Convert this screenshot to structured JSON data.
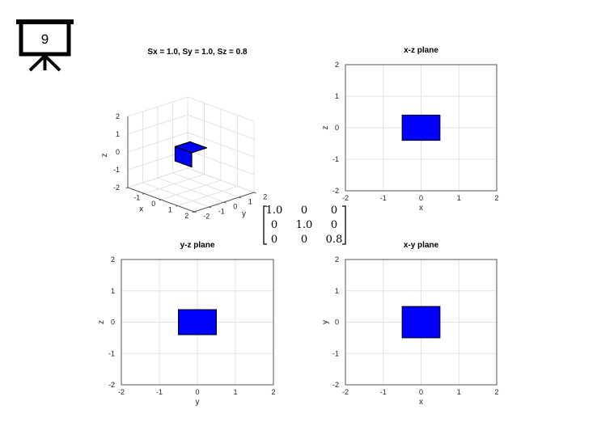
{
  "slide": {
    "number": "9"
  },
  "matrix": {
    "rows": [
      [
        "1.0",
        "0",
        "0"
      ],
      [
        "0",
        "1.0",
        "0"
      ],
      [
        "0",
        "0",
        "0.8"
      ]
    ],
    "highlight_color": "#e0191e",
    "highlight": [
      2,
      2
    ]
  },
  "chart_data": [
    {
      "type": "3d-box",
      "title": "Sx = 1.0, Sy = 1.0, Sz = 0.8",
      "xlabel": "x",
      "ylabel": "y",
      "zlabel": "z",
      "xlim": [
        -2,
        2
      ],
      "ylim": [
        -2,
        2
      ],
      "zlim": [
        -2,
        2
      ],
      "xticks": [
        "-1",
        "0",
        "1",
        "2"
      ],
      "yticks": [
        "-2",
        "-1",
        "0",
        "1",
        "2"
      ],
      "zticks": [
        "-2",
        "-1",
        "0",
        "1",
        "2"
      ],
      "box": {
        "x": [
          -0.5,
          0.5
        ],
        "y": [
          -0.5,
          0.5
        ],
        "z": [
          -0.4,
          0.4
        ]
      },
      "color": "#0000ff"
    },
    {
      "type": "rectangle-plot",
      "title": "x-z plane",
      "xlabel": "x",
      "ylabel": "z",
      "xlim": [
        -2,
        2
      ],
      "ylim": [
        -2,
        2
      ],
      "xticks": [
        "-2",
        "-1",
        "0",
        "1",
        "2"
      ],
      "yticks": [
        "-2",
        "-1",
        "0",
        "1",
        "2"
      ],
      "rect": {
        "x": [
          -0.5,
          0.5
        ],
        "y": [
          -0.4,
          0.4
        ]
      },
      "color": "#0000ff"
    },
    {
      "type": "rectangle-plot",
      "title": "y-z plane",
      "xlabel": "y",
      "ylabel": "z",
      "xlim": [
        -2,
        2
      ],
      "ylim": [
        -2,
        2
      ],
      "xticks": [
        "-2",
        "-1",
        "0",
        "1",
        "2"
      ],
      "yticks": [
        "-2",
        "-1",
        "0",
        "1",
        "2"
      ],
      "rect": {
        "x": [
          -0.5,
          0.5
        ],
        "y": [
          -0.4,
          0.4
        ]
      },
      "color": "#0000ff"
    },
    {
      "type": "rectangle-plot",
      "title": "x-y plane",
      "xlabel": "x",
      "ylabel": "y",
      "xlim": [
        -2,
        2
      ],
      "ylim": [
        -2,
        2
      ],
      "xticks": [
        "-2",
        "-1",
        "0",
        "1",
        "2"
      ],
      "yticks": [
        "-2",
        "-1",
        "0",
        "1",
        "2"
      ],
      "rect": {
        "x": [
          -0.5,
          0.5
        ],
        "y": [
          -0.5,
          0.5
        ]
      },
      "color": "#0000ff"
    }
  ]
}
